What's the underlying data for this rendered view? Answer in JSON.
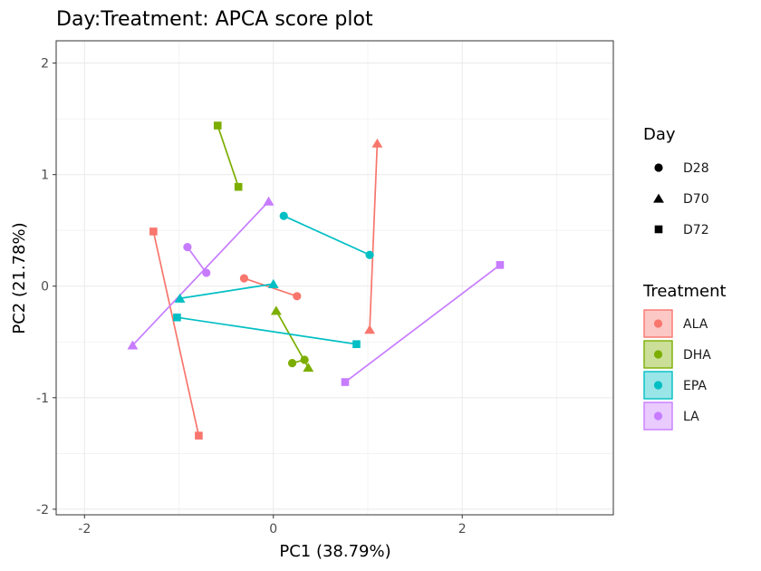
{
  "chart_data": {
    "type": "scatter",
    "title": "Day:Treatment: APCA score plot",
    "xlabel": "PC1 (38.79%)",
    "ylabel": "PC2 (21.78%)",
    "xlim": [
      -2.3,
      3.6
    ],
    "ylim": [
      -2.05,
      2.2
    ],
    "x_ticks": [
      -2,
      0,
      2
    ],
    "y_ticks": [
      -2,
      -1,
      0,
      1,
      2
    ],
    "x_tick_labels": [
      "-2",
      "0",
      "2"
    ],
    "y_tick_labels": [
      "-2",
      "-1",
      "0",
      "1",
      "2"
    ],
    "grid": true,
    "legend_position": "right",
    "legend_day": {
      "title": "Day",
      "entries": [
        {
          "label": "D28",
          "shape": "circle"
        },
        {
          "label": "D70",
          "shape": "triangle"
        },
        {
          "label": "D72",
          "shape": "square"
        }
      ]
    },
    "legend_treatment": {
      "title": "Treatment",
      "entries": [
        {
          "label": "ALA",
          "color": "#F8766D"
        },
        {
          "label": "DHA",
          "color": "#7CAE00"
        },
        {
          "label": "EPA",
          "color": "#00BFC4"
        },
        {
          "label": "LA",
          "color": "#C77CFF"
        }
      ]
    },
    "segments": [
      {
        "treatment": "ALA",
        "day": "D28",
        "from": [
          -0.31,
          0.07
        ],
        "to": [
          0.25,
          -0.09
        ]
      },
      {
        "treatment": "ALA",
        "day": "D70",
        "from": [
          1.1,
          1.28
        ],
        "to": [
          1.02,
          -0.39
        ]
      },
      {
        "treatment": "ALA",
        "day": "D72",
        "from": [
          -1.27,
          0.49
        ],
        "to": [
          -0.79,
          -1.34
        ]
      },
      {
        "treatment": "DHA",
        "day": "D28",
        "from": [
          0.33,
          -0.66
        ],
        "to": [
          0.2,
          -0.69
        ]
      },
      {
        "treatment": "DHA",
        "day": "D70",
        "from": [
          0.03,
          -0.22
        ],
        "to": [
          0.37,
          -0.73
        ]
      },
      {
        "treatment": "DHA",
        "day": "D72",
        "from": [
          -0.59,
          1.44
        ],
        "to": [
          -0.37,
          0.89
        ]
      },
      {
        "treatment": "EPA",
        "day": "D28",
        "from": [
          0.11,
          0.63
        ],
        "to": [
          1.02,
          0.28
        ]
      },
      {
        "treatment": "EPA",
        "day": "D70",
        "from": [
          0.0,
          0.02
        ],
        "to": [
          -0.99,
          -0.11
        ]
      },
      {
        "treatment": "EPA",
        "day": "D72",
        "from": [
          -1.02,
          -0.28
        ],
        "to": [
          0.88,
          -0.52
        ]
      },
      {
        "treatment": "LA",
        "day": "D28",
        "from": [
          -0.91,
          0.35
        ],
        "to": [
          -0.71,
          0.12
        ]
      },
      {
        "treatment": "LA",
        "day": "D70",
        "from": [
          -0.05,
          0.76
        ],
        "to": [
          -1.49,
          -0.53
        ]
      },
      {
        "treatment": "LA",
        "day": "D72",
        "from": [
          2.4,
          0.19
        ],
        "to": [
          0.76,
          -0.86
        ]
      }
    ]
  }
}
